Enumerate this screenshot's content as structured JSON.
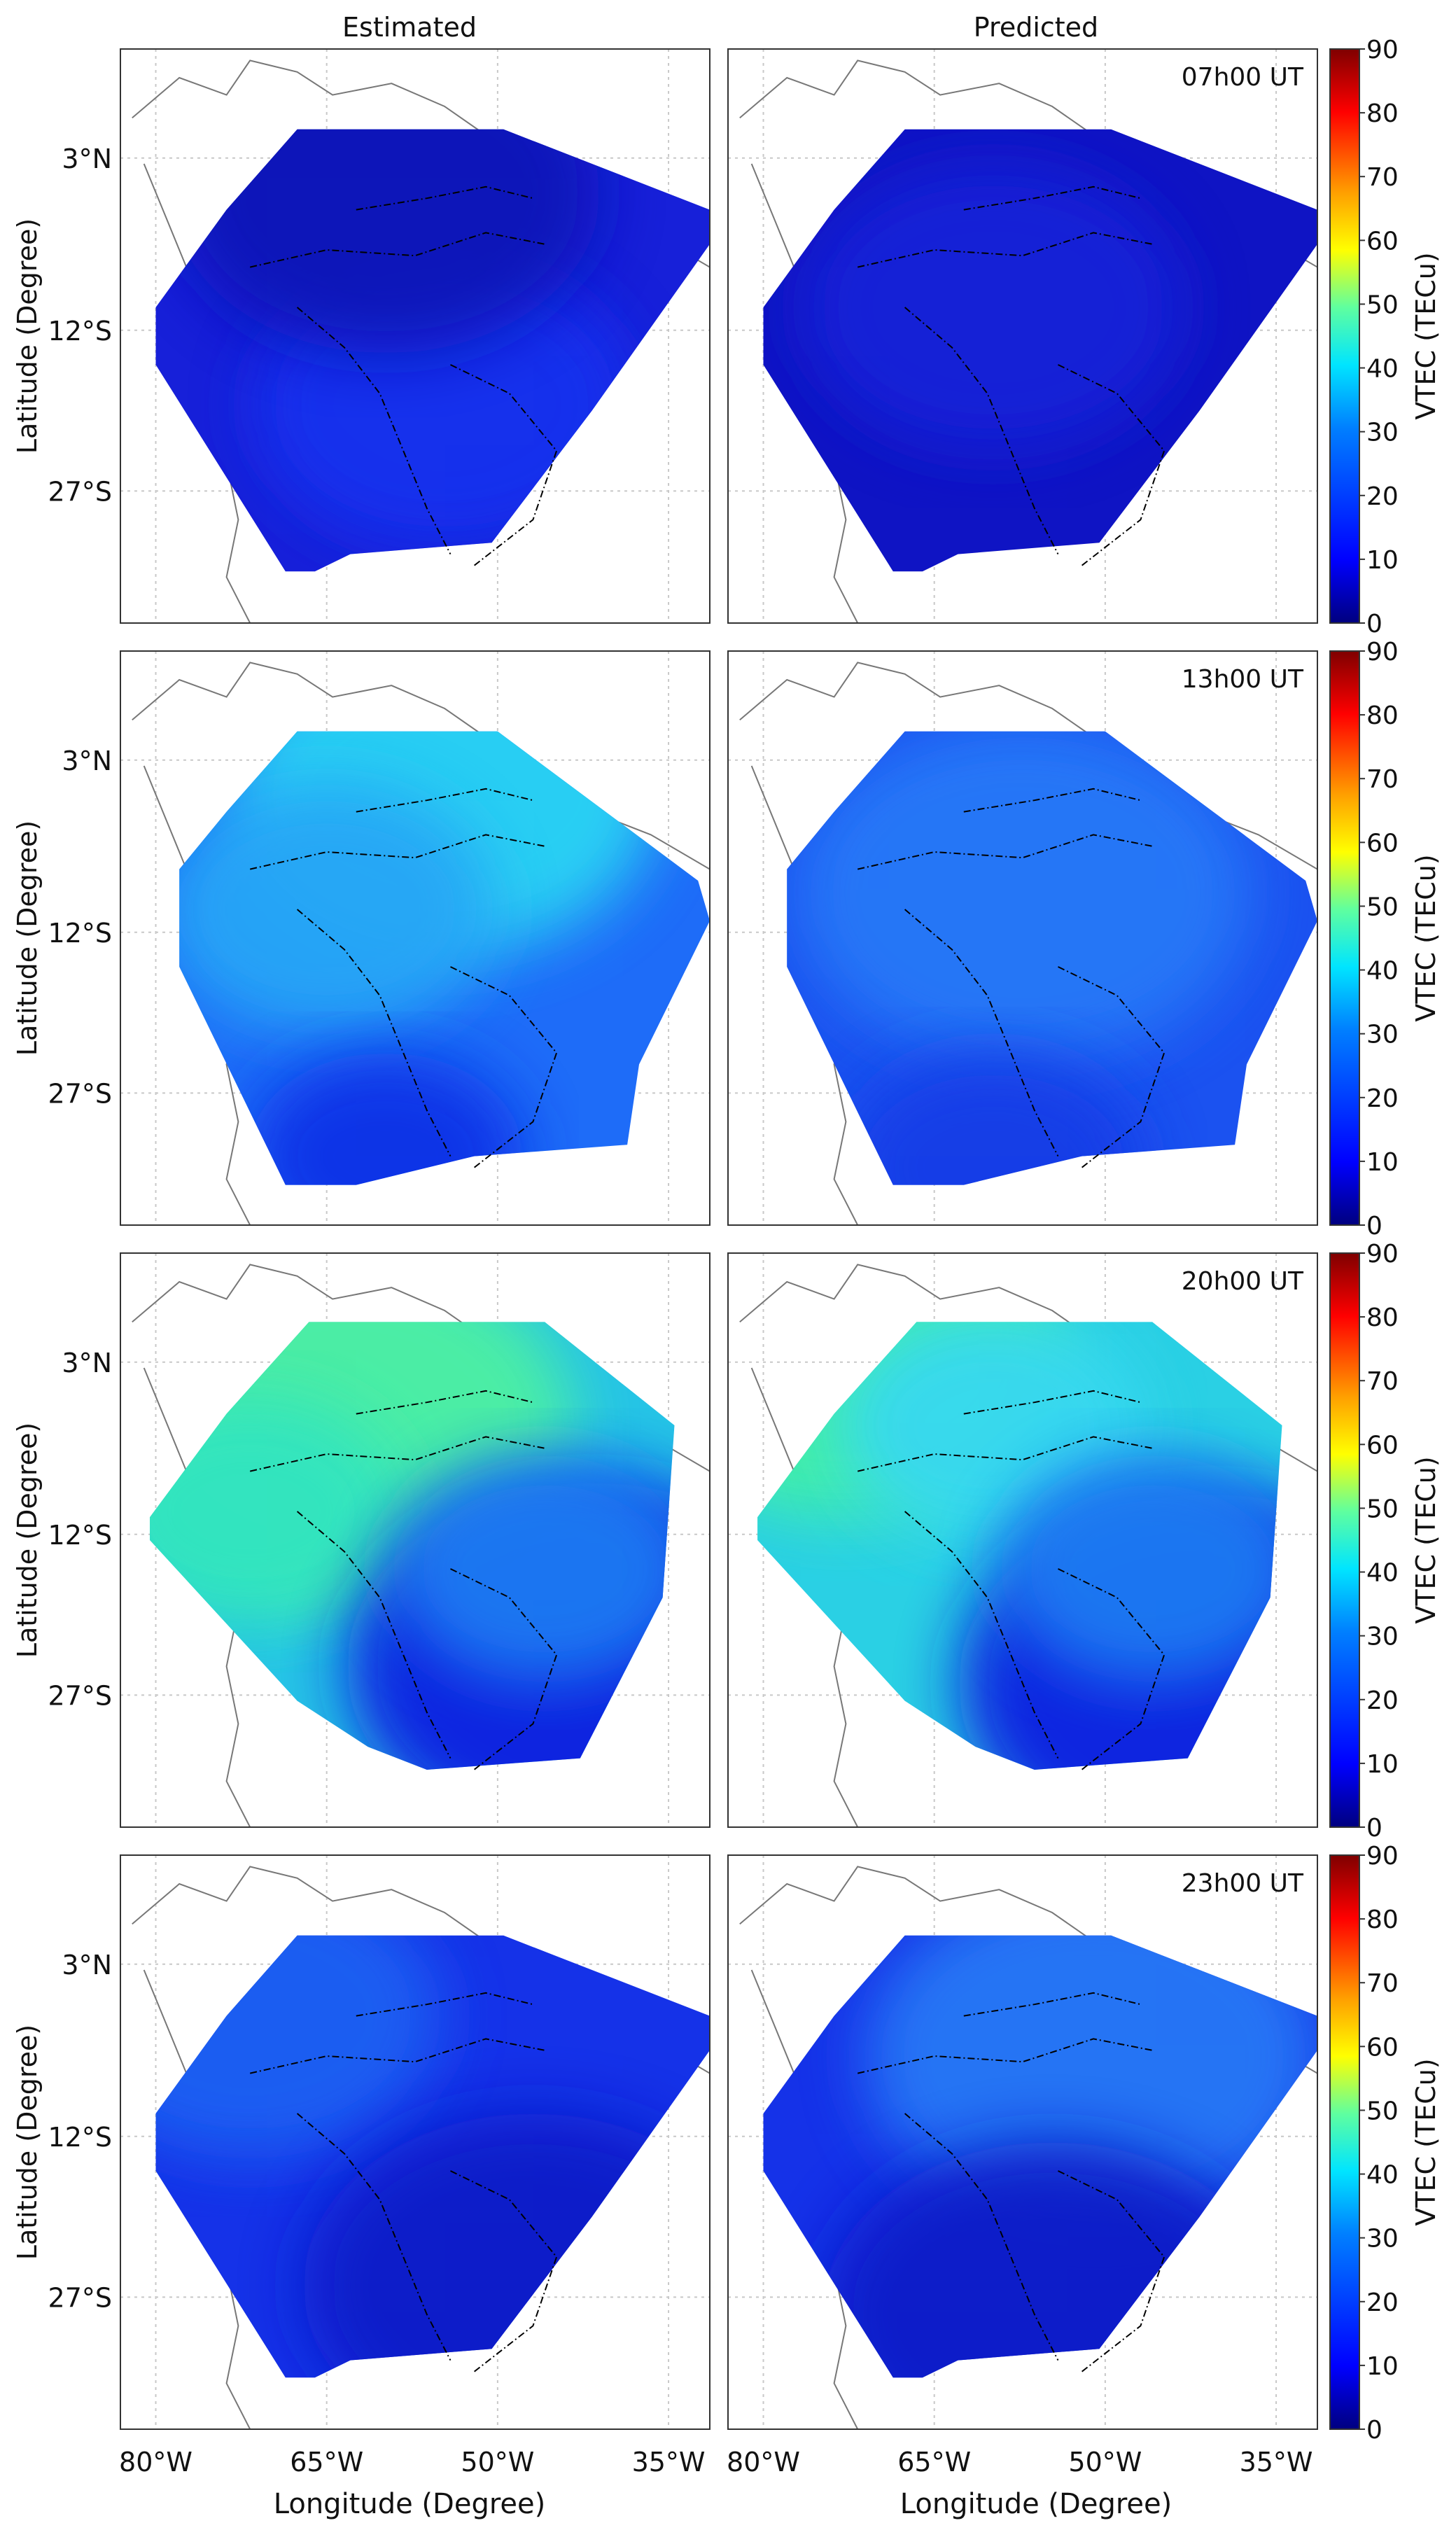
{
  "figure": {
    "column_titles": [
      "Estimated",
      "Predicted"
    ],
    "x_axis_label": "Longitude (Degree)",
    "y_axis_label": "Latitude (Degree)",
    "lon_ticks": [
      "80°W",
      "65°W",
      "50°W",
      "35°W"
    ],
    "lat_ticks": [
      "3°N",
      "12°S",
      "27°S"
    ],
    "colorbar": {
      "label": "VTEC (TECu)",
      "ticks": [
        "0",
        "10",
        "20",
        "30",
        "40",
        "50",
        "60",
        "70",
        "80",
        "90"
      ],
      "range": [
        0,
        90
      ],
      "colors": [
        "#00007f",
        "#0000ff",
        "#007fff",
        "#00ffff",
        "#7fff7f",
        "#ffff00",
        "#ff7f00",
        "#ff0000",
        "#7f0000"
      ]
    },
    "rows": [
      {
        "time": "07h00 UT"
      },
      {
        "time": "13h00 UT"
      },
      {
        "time": "20h00 UT"
      },
      {
        "time": "23h00 UT"
      }
    ]
  }
}
